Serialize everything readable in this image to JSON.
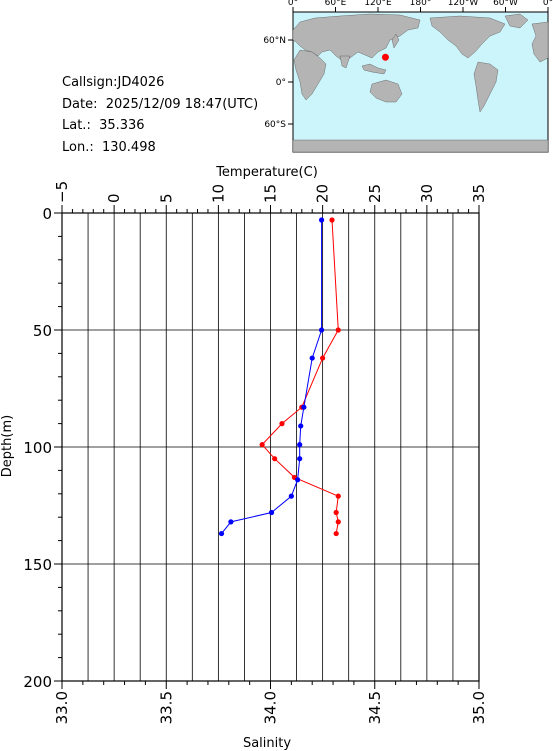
{
  "info": {
    "callsign": "Callsign:JD4026",
    "date": "Date:  2025/12/09 18:47(UTC)",
    "lat": "Lat.:  35.336",
    "lon": "Lon.:  130.498"
  },
  "map": {
    "top_labels": [
      "0°",
      "60°E",
      "120°E",
      "180°",
      "120°W",
      "60°W",
      "0°"
    ],
    "lat_labels": [
      "60°N",
      "0°",
      "60°S"
    ],
    "ocean_color": "#ccf4fb",
    "land_color": "#b4b4b4",
    "marker": {
      "lon": 130.498,
      "lat": 35.336,
      "color": "#ff0000"
    }
  },
  "chart_data": {
    "type": "line",
    "y_axis": {
      "label": "Depth(m)",
      "range": [
        0,
        200
      ],
      "ticks": [
        "0",
        "50",
        "100",
        "150",
        "200"
      ],
      "inverted": true
    },
    "top_axis": {
      "label": "Temperature(C)",
      "range": [
        -5,
        35
      ],
      "ticks": [
        "−5",
        "0",
        "5",
        "10",
        "15",
        "20",
        "25",
        "30",
        "35"
      ]
    },
    "bottom_axis": {
      "label": "Salinity",
      "range": [
        33.0,
        35.0
      ],
      "ticks": [
        "33.0",
        "33.5",
        "34.0",
        "34.5",
        "35.0"
      ]
    },
    "grid": true,
    "series": [
      {
        "axis": "temperature",
        "color": "#ff0000",
        "points": [
          [
            20.9,
            3
          ],
          [
            21.5,
            50
          ],
          [
            20.0,
            62
          ],
          [
            18.0,
            83
          ],
          [
            16.1,
            90
          ],
          [
            14.2,
            99
          ],
          [
            15.4,
            105
          ],
          [
            17.3,
            113
          ],
          [
            21.5,
            121
          ],
          [
            21.3,
            128
          ],
          [
            21.5,
            132
          ],
          [
            21.3,
            137
          ]
        ]
      },
      {
        "axis": "salinity",
        "color": "#0000ff",
        "points": [
          [
            34.245,
            3
          ],
          [
            34.245,
            50
          ],
          [
            34.2,
            62
          ],
          [
            34.16,
            83
          ],
          [
            34.145,
            91
          ],
          [
            34.14,
            99
          ],
          [
            34.14,
            105
          ],
          [
            34.13,
            114
          ],
          [
            34.1,
            121
          ],
          [
            34.005,
            128
          ],
          [
            33.81,
            132
          ],
          [
            33.765,
            137
          ]
        ]
      }
    ]
  }
}
